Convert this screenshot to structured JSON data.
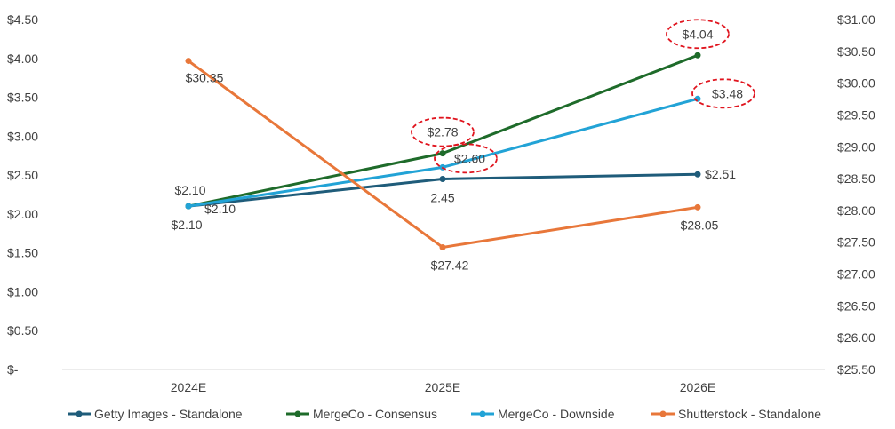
{
  "chart_data": {
    "type": "line",
    "categories": [
      "2024E",
      "2025E",
      "2026E"
    ],
    "y_left": {
      "range": [
        0,
        4.5
      ],
      "ticks": [
        "$-",
        "$0.50",
        "$1.00",
        "$1.50",
        "$2.00",
        "$2.50",
        "$3.00",
        "$3.50",
        "$4.00",
        "$4.50"
      ]
    },
    "y_right": {
      "range": [
        25.5,
        31.0
      ],
      "ticks": [
        "$25.50",
        "$26.00",
        "$26.50",
        "$27.00",
        "$27.50",
        "$28.00",
        "$28.50",
        "$29.00",
        "$29.50",
        "$30.00",
        "$30.50",
        "$31.00"
      ]
    },
    "grid": false,
    "legend_position": "bottom",
    "series": [
      {
        "name": "Getty Images - Standalone",
        "axis": "left",
        "color": "#1F5C7A",
        "values": [
          2.1,
          2.45,
          2.51
        ],
        "labels": [
          "$2.10",
          "2.45",
          "$2.51"
        ],
        "circled": [
          false,
          false,
          false
        ]
      },
      {
        "name": "MergeCo - Consensus",
        "axis": "left",
        "color": "#1E6B2A",
        "values": [
          2.1,
          2.78,
          4.04
        ],
        "labels": [
          "$2.10",
          "$2.78",
          "$4.04"
        ],
        "circled": [
          false,
          true,
          true
        ]
      },
      {
        "name": "MergeCo - Downside",
        "axis": "left",
        "color": "#22A3D6",
        "values": [
          2.1,
          2.6,
          3.48
        ],
        "labels": [
          "$2.10",
          "$2.60",
          "$3.48"
        ],
        "circled": [
          false,
          true,
          true
        ]
      },
      {
        "name": "Shutterstock - Standalone",
        "axis": "right",
        "color": "#E8773A",
        "values": [
          30.35,
          27.42,
          28.05
        ],
        "labels": [
          "$30.35",
          "$27.42",
          "$28.05"
        ],
        "circled": [
          false,
          false,
          false
        ]
      }
    ],
    "highlight_color": "#E0141E"
  }
}
